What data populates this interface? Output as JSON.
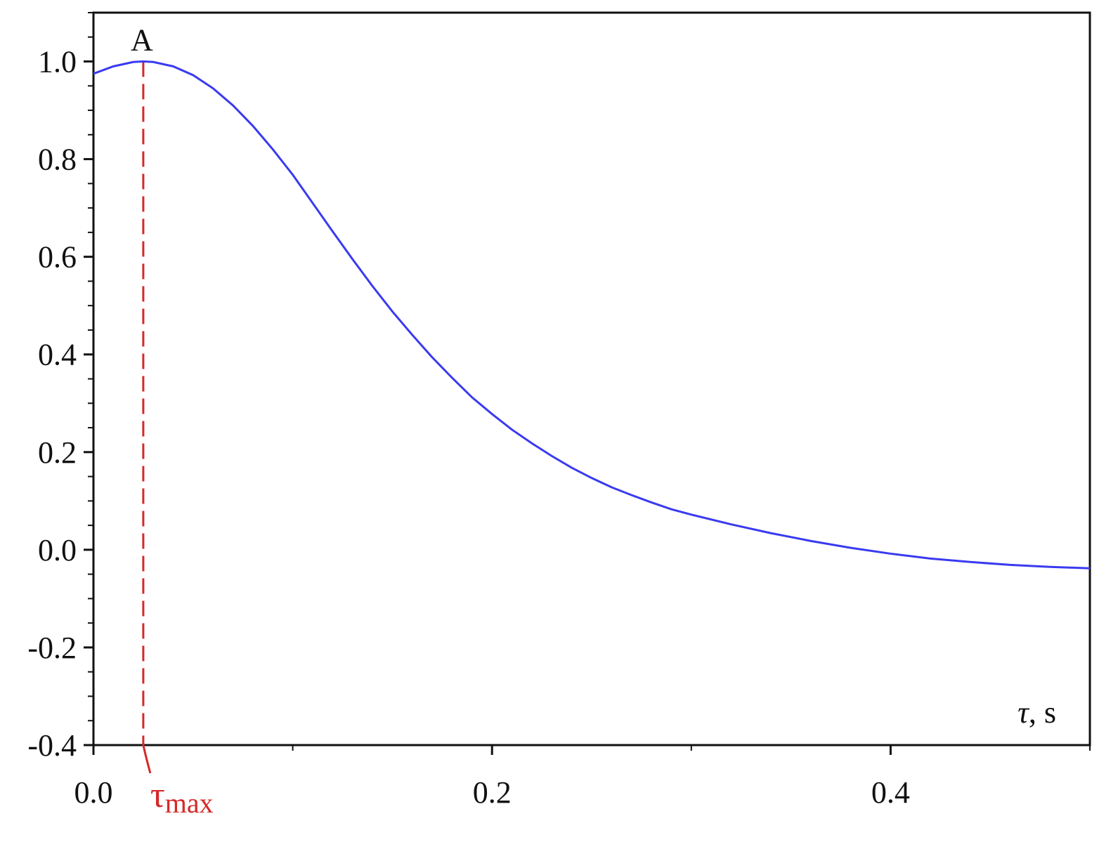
{
  "chart_data": {
    "type": "line",
    "xlim": [
      0.0,
      0.5
    ],
    "ylim": [
      -0.4,
      1.1
    ],
    "x_ticks": [
      {
        "value": 0.0,
        "label": "0.0"
      },
      {
        "value": 0.2,
        "label": "0.2"
      },
      {
        "value": 0.4,
        "label": "0.4"
      }
    ],
    "x_minor_ticks": [
      0.1,
      0.3,
      0.5
    ],
    "y_ticks": [
      {
        "value": -0.4,
        "label": "-0.4"
      },
      {
        "value": -0.2,
        "label": "-0.2"
      },
      {
        "value": 0.0,
        "label": "0.0"
      },
      {
        "value": 0.2,
        "label": "0.2"
      },
      {
        "value": 0.4,
        "label": "0.4"
      },
      {
        "value": 0.6,
        "label": "0.6"
      },
      {
        "value": 0.8,
        "label": "0.8"
      },
      {
        "value": 1.0,
        "label": "1.0"
      }
    ],
    "y_minor_step": 0.05,
    "xlabel": {
      "symbol": "τ",
      "unit": ", s"
    },
    "ylabel": "",
    "grid": false,
    "series": [
      {
        "color": "#3a3af0",
        "x": [
          0.0,
          0.01,
          0.02,
          0.025,
          0.03,
          0.04,
          0.05,
          0.06,
          0.07,
          0.08,
          0.09,
          0.1,
          0.11,
          0.12,
          0.13,
          0.14,
          0.15,
          0.16,
          0.17,
          0.18,
          0.19,
          0.2,
          0.21,
          0.22,
          0.23,
          0.24,
          0.25,
          0.26,
          0.27,
          0.28,
          0.29,
          0.3,
          0.32,
          0.34,
          0.36,
          0.38,
          0.4,
          0.42,
          0.44,
          0.46,
          0.48,
          0.5
        ],
        "y": [
          0.975,
          0.99,
          0.999,
          1.0,
          0.999,
          0.99,
          0.972,
          0.945,
          0.91,
          0.868,
          0.82,
          0.768,
          0.71,
          0.652,
          0.595,
          0.54,
          0.488,
          0.44,
          0.394,
          0.352,
          0.312,
          0.278,
          0.246,
          0.218,
          0.192,
          0.168,
          0.147,
          0.128,
          0.112,
          0.097,
          0.083,
          0.072,
          0.052,
          0.034,
          0.018,
          0.004,
          -0.008,
          -0.018,
          -0.025,
          -0.031,
          -0.035,
          -0.038
        ]
      }
    ],
    "annotations": {
      "peak_label": "A",
      "peak_x": 0.025,
      "peak_y": 1.0,
      "marker_symbol": "τ",
      "marker_subscript": "max",
      "marker_color": "#d42a2a"
    }
  }
}
